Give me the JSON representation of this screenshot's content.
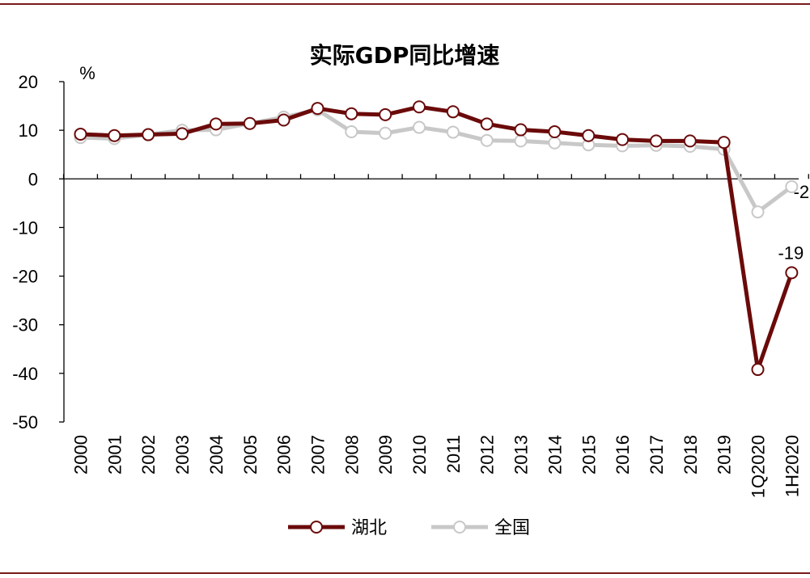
{
  "chart_data": {
    "type": "line",
    "title": "实际GDP同比增速",
    "unit": "%",
    "categories": [
      "2000",
      "2001",
      "2002",
      "2003",
      "2004",
      "2005",
      "2006",
      "2007",
      "2008",
      "2009",
      "2010",
      "2011",
      "2012",
      "2013",
      "2014",
      "2015",
      "2016",
      "2017",
      "2018",
      "2019",
      "1Q2020",
      "1H2020"
    ],
    "ylim": [
      -50,
      20
    ],
    "yticks": [
      20,
      10,
      0,
      -10,
      -20,
      -30,
      -40,
      -50
    ],
    "grid": false,
    "legend_position": "bottom",
    "series": [
      {
        "name": "湖北",
        "color": "#6b0a0a",
        "values": [
          9.2,
          8.9,
          9.1,
          9.3,
          11.3,
          11.4,
          12.1,
          14.5,
          13.4,
          13.2,
          14.8,
          13.8,
          11.3,
          10.1,
          9.7,
          8.9,
          8.1,
          7.8,
          7.8,
          7.5,
          -39.2,
          -19.3
        ]
      },
      {
        "name": "全国",
        "color": "#c8c8c8",
        "values": [
          8.5,
          8.3,
          9.1,
          10.0,
          10.1,
          11.4,
          12.7,
          14.2,
          9.7,
          9.4,
          10.6,
          9.6,
          7.9,
          7.8,
          7.4,
          7.0,
          6.8,
          6.9,
          6.7,
          6.1,
          -6.8,
          -1.6
        ]
      }
    ],
    "annotations": [
      {
        "text": "-2",
        "category": "1H2020",
        "series": "全国"
      },
      {
        "text": "-19",
        "category": "1H2020",
        "series": "湖北"
      }
    ]
  }
}
